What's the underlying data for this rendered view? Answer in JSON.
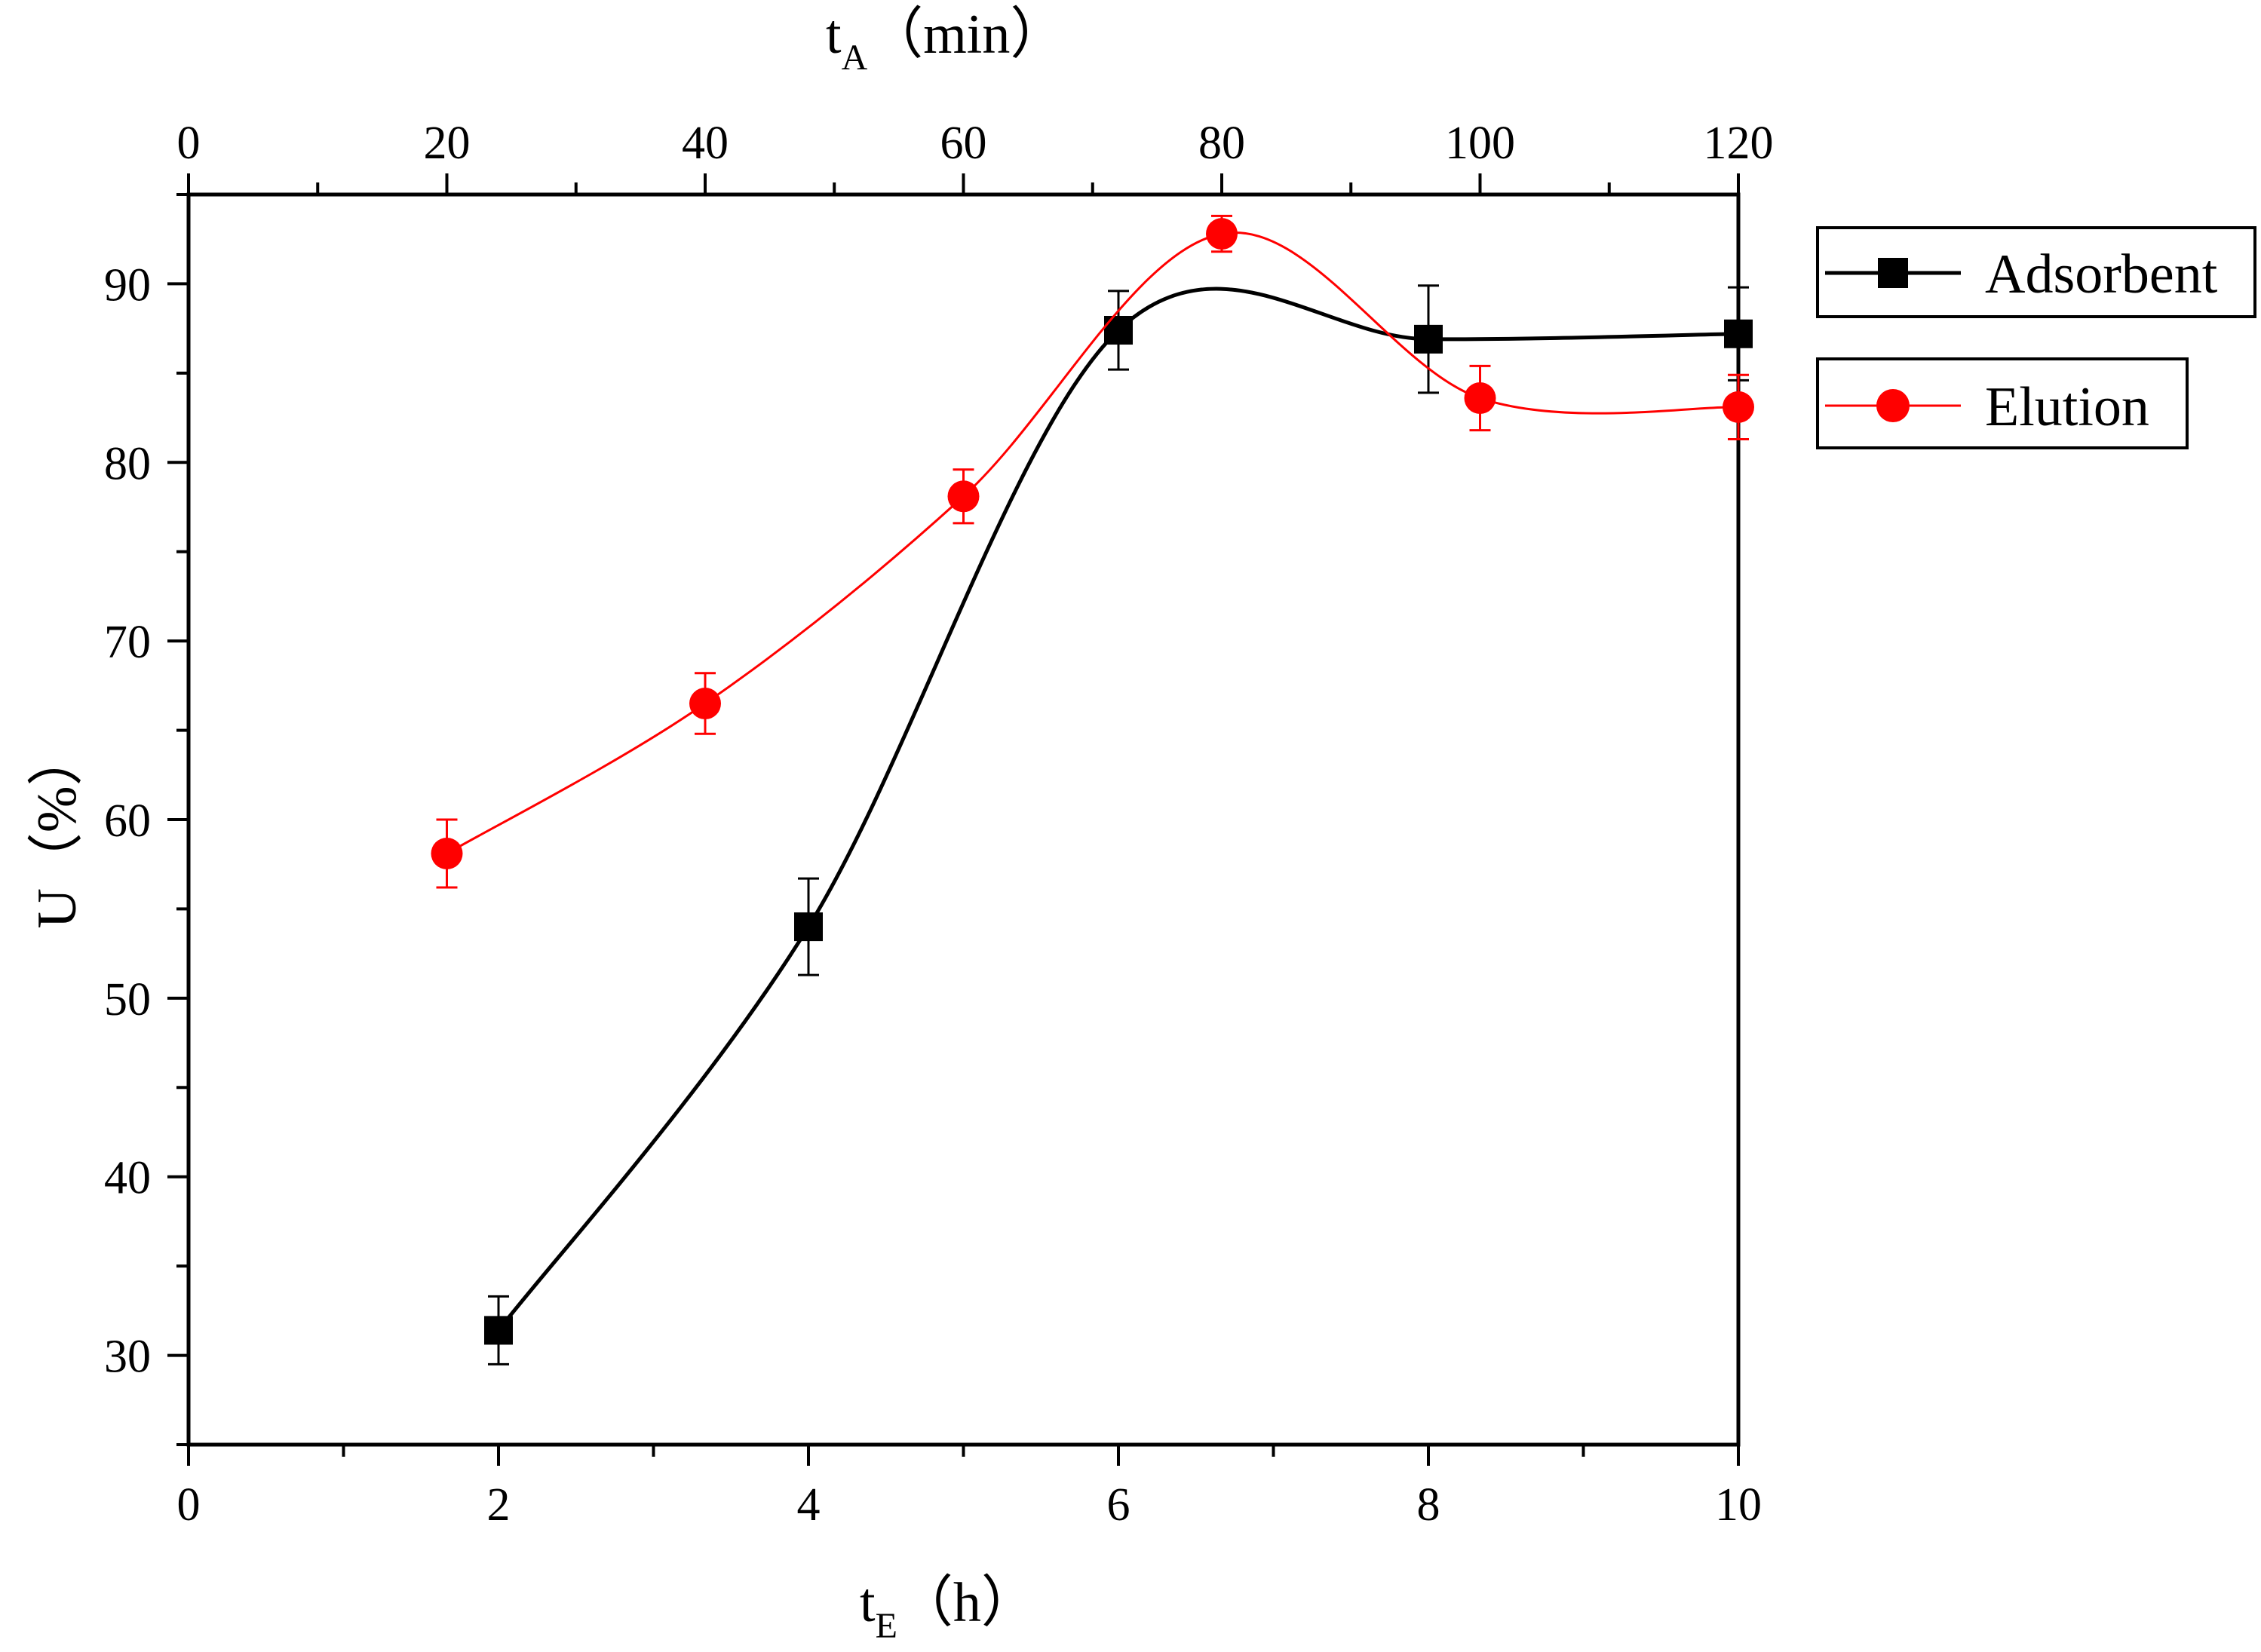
{
  "chart_data": {
    "type": "line",
    "bottom_axis": {
      "label_main": "t",
      "label_sub": "E",
      "label_unit": "（h）",
      "xlim": [
        0,
        10
      ],
      "ticks": [
        "0",
        "2",
        "4",
        "6",
        "8",
        "10"
      ]
    },
    "top_axis": {
      "label_main": "t",
      "label_sub": "A",
      "label_unit": "（min）",
      "xlim": [
        0,
        120
      ],
      "ticks": [
        "0",
        "20",
        "40",
        "60",
        "80",
        "100",
        "120"
      ]
    },
    "y_axis": {
      "label": "U（%）",
      "ylim": [
        25,
        95
      ],
      "ticks": [
        "30",
        "40",
        "50",
        "60",
        "70",
        "80",
        "90"
      ]
    },
    "series": [
      {
        "name": "Adsorbent",
        "axis": "bottom",
        "marker": "square",
        "color": "#000000",
        "x": [
          2,
          4,
          6,
          8,
          10
        ],
        "y": [
          31.4,
          54.0,
          87.4,
          86.9,
          87.2
        ],
        "err": [
          1.9,
          2.7,
          2.2,
          3.0,
          2.6
        ]
      },
      {
        "name": "Elution",
        "axis": "top",
        "marker": "circle",
        "color": "#ff0000",
        "x": [
          20,
          40,
          60,
          80,
          100,
          120
        ],
        "y": [
          58.1,
          66.5,
          78.1,
          92.8,
          83.6,
          83.1
        ],
        "err": [
          1.9,
          1.7,
          1.5,
          1.0,
          1.8,
          1.8
        ]
      }
    ],
    "legend": {
      "position": "top-right-outside",
      "entries": [
        "Adsorbent",
        "Elution"
      ]
    },
    "grid": false
  }
}
